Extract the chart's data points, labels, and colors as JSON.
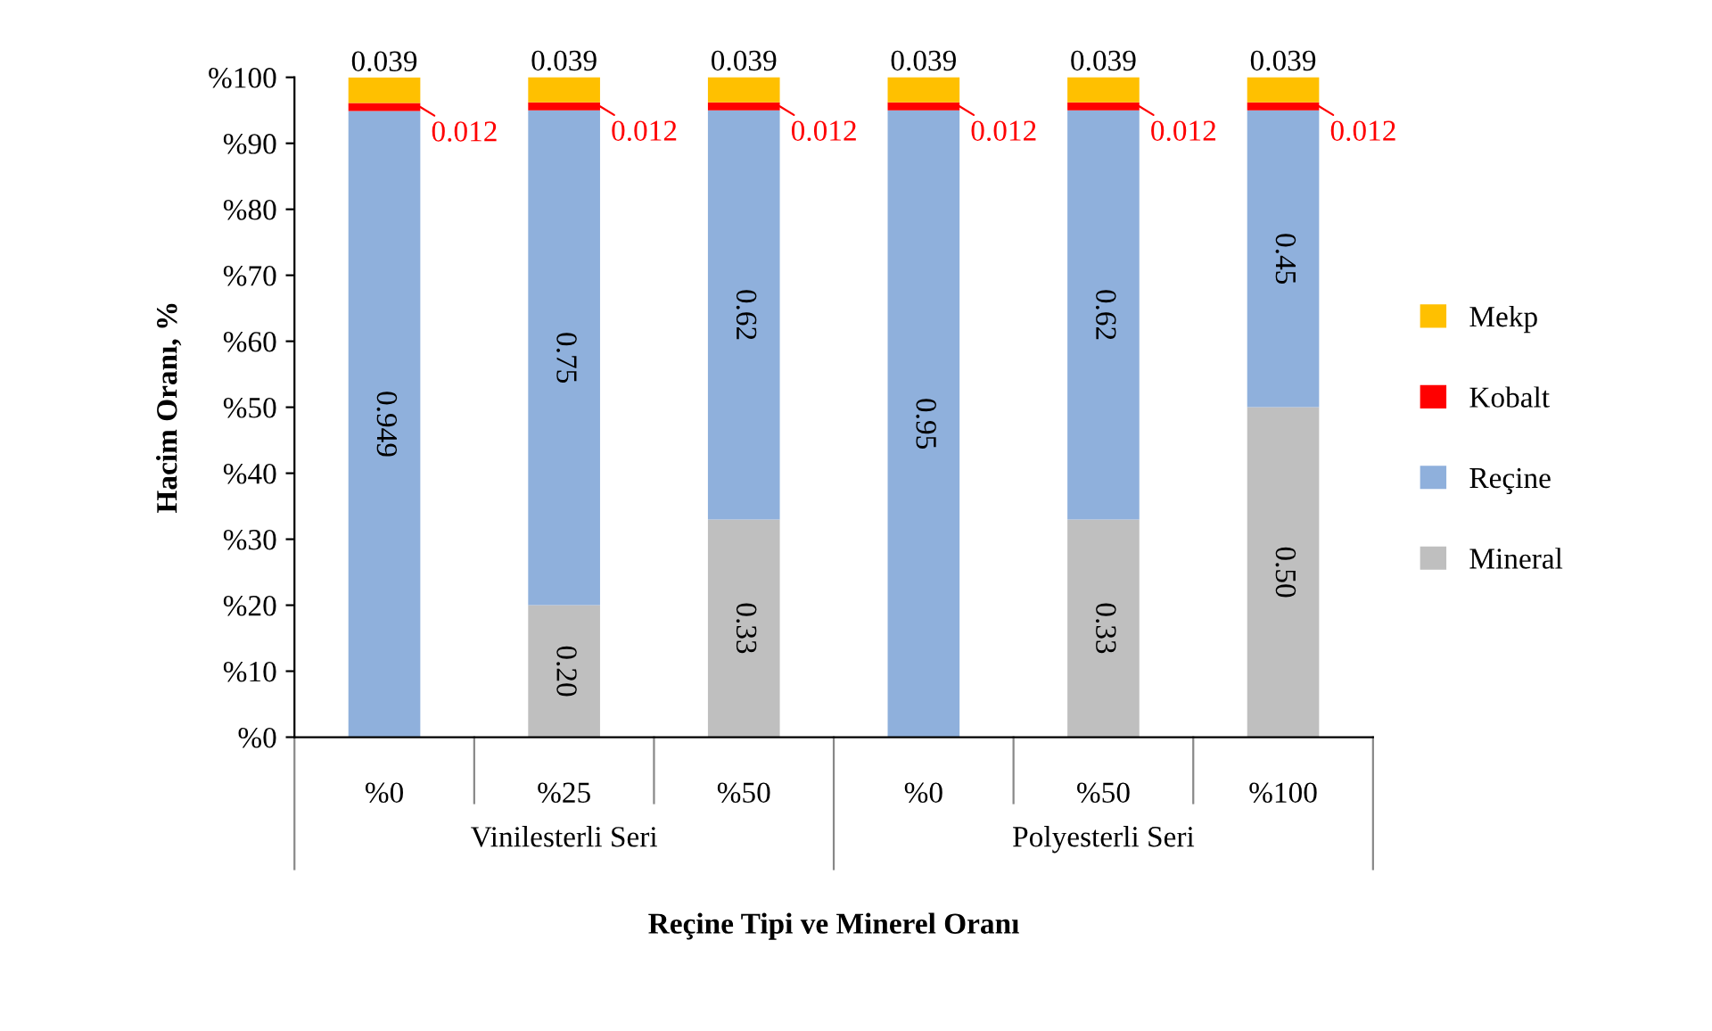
{
  "chart_data": {
    "type": "bar",
    "stacked": true,
    "ylabel": "Hacim Oranı, %",
    "xlabel": "Reçine Tipi ve Minerel Oranı",
    "categories": [
      "%0",
      "%25",
      "%50",
      "%0",
      "%50",
      "%100"
    ],
    "annotations": [
      "Vinilesterli Seri",
      "Polyesterli Seri"
    ],
    "ylim": [
      0,
      1
    ],
    "yticks": [
      {
        "value": 0,
        "label": "%0"
      },
      {
        "value": 0.1,
        "label": "%10"
      },
      {
        "value": 0.2,
        "label": "%20"
      },
      {
        "value": 0.3,
        "label": "%30"
      },
      {
        "value": 0.4,
        "label": "%40"
      },
      {
        "value": 0.5,
        "label": "%50"
      },
      {
        "value": 0.6,
        "label": "%60"
      },
      {
        "value": 0.7,
        "label": "%70"
      },
      {
        "value": 0.8,
        "label": "%80"
      },
      {
        "value": 0.9,
        "label": "%90"
      },
      {
        "value": 1,
        "label": "%100"
      }
    ],
    "grid": false,
    "legend": "right",
    "series": [
      {
        "name": "Mineral",
        "color": "#bfbfbf",
        "values": [
          0,
          0.2,
          0.33,
          0,
          0.33,
          0.5
        ],
        "value_labels": [
          null,
          "0.20",
          "0.33",
          null,
          "0.33",
          "0.50"
        ]
      },
      {
        "name": "Reçine",
        "color": "#8fb0dc",
        "values": [
          0.949,
          0.75,
          0.62,
          0.95,
          0.62,
          0.45
        ],
        "value_labels": [
          "0.949",
          "0.75",
          "0.62",
          "0.95",
          "0.62",
          "0.45"
        ]
      },
      {
        "name": "Kobalt",
        "color": "#ff0000",
        "values": [
          0.012,
          0.012,
          0.012,
          0.012,
          0.012,
          0.012
        ],
        "value_labels": [
          "0.012",
          "0.012",
          "0.012",
          "0.012",
          "0.012",
          "0.012"
        ]
      },
      {
        "name": "Mekp",
        "color": "#ffc000",
        "values": [
          0.039,
          0.039,
          0.039,
          0.039,
          0.039,
          0.039
        ],
        "value_labels": [
          "0.039",
          "0.039",
          "0.039",
          "0.039",
          "0.039",
          "0.039"
        ]
      }
    ]
  }
}
